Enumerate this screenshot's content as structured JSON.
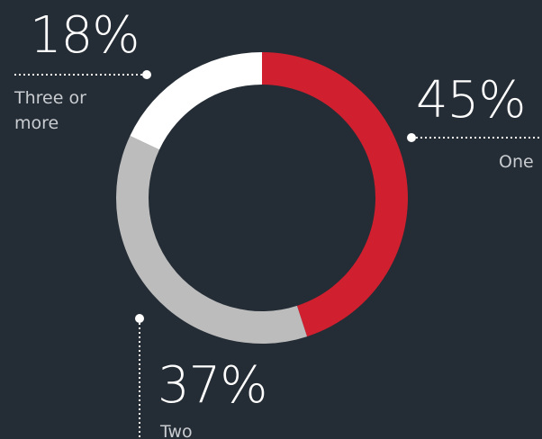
{
  "chart_data": {
    "type": "pie",
    "subtype": "donut",
    "categories": [
      "One",
      "Two",
      "Three or more"
    ],
    "values": [
      45,
      37,
      18
    ],
    "labels": {
      "one": {
        "percent": "45%",
        "category": "One"
      },
      "two": {
        "percent": "37%",
        "category": "Two"
      },
      "three": {
        "percent": "18%",
        "category": [
          "Three or",
          "more"
        ]
      }
    },
    "colors": {
      "one": "#d0202f",
      "two": "#bcbcbc",
      "three": "#ffffff",
      "background": "#242c35",
      "leader": "#ffffff"
    }
  }
}
